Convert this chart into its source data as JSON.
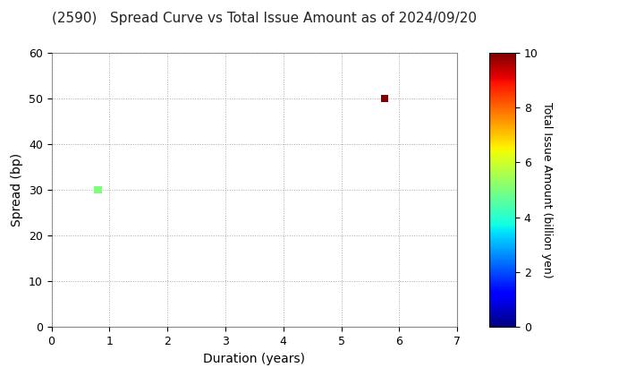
{
  "title": "(2590)   Spread Curve vs Total Issue Amount as of 2024/09/20",
  "points": [
    {
      "duration": 0.8,
      "spread": 30,
      "amount": 5.0
    },
    {
      "duration": 5.75,
      "spread": 50,
      "amount": 10.0
    }
  ],
  "xlim": [
    0,
    7
  ],
  "ylim": [
    0,
    60
  ],
  "xticks": [
    0,
    1,
    2,
    3,
    4,
    5,
    6,
    7
  ],
  "yticks": [
    0,
    10,
    20,
    30,
    40,
    50,
    60
  ],
  "xlabel": "Duration (years)",
  "ylabel": "Spread (bp)",
  "colorbar_label": "Total Issue Amount (billion yen)",
  "colorbar_ticks": [
    0,
    2,
    4,
    6,
    8,
    10
  ],
  "cmap": "jet",
  "vmin": 0,
  "vmax": 10,
  "title_fontsize": 11,
  "axis_label_fontsize": 10,
  "tick_fontsize": 9,
  "colorbar_label_fontsize": 9,
  "background_color": "#ffffff",
  "grid_color": "#aaaaaa",
  "marker_size": 36,
  "marker_shape": "s"
}
